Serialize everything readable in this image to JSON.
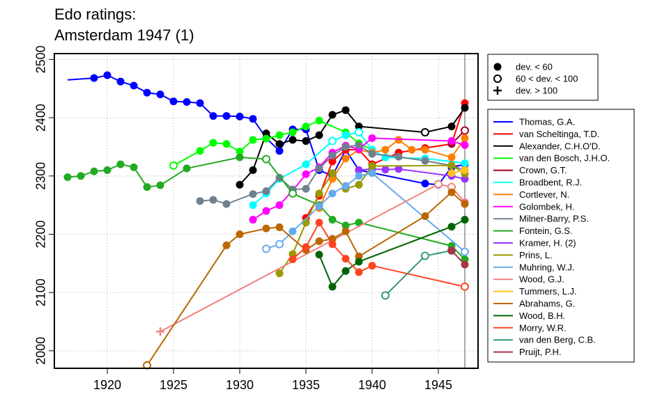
{
  "chart_data": {
    "type": "line",
    "title": [
      "Edo ratings:",
      "Amsterdam 1947 (1)"
    ],
    "xlabel": "",
    "ylabel": "",
    "xlim": [
      1916,
      1948
    ],
    "ylim": [
      1970,
      2510
    ],
    "x_ticks": [
      1920,
      1925,
      1930,
      1935,
      1940,
      1945
    ],
    "y_ticks": [
      2000,
      2100,
      2200,
      2300,
      2400,
      2500
    ],
    "grid": true,
    "vertical_marker_x": 1947,
    "marker_legend": [
      {
        "symbol": "filled",
        "label": "dev. < 60"
      },
      {
        "symbol": "open",
        "label": "60 < dev. < 100"
      },
      {
        "symbol": "plus",
        "label": "dev. > 100"
      }
    ],
    "series": [
      {
        "name": "Thomas, G.A.",
        "color": "#0000ff",
        "points": [
          [
            1917,
            2465,
            "n"
          ],
          [
            1919,
            2468,
            "f"
          ],
          [
            1920,
            2473,
            "f"
          ],
          [
            1921,
            2462,
            "f"
          ],
          [
            1922,
            2455,
            "f"
          ],
          [
            1923,
            2443,
            "f"
          ],
          [
            1924,
            2440,
            "f"
          ],
          [
            1925,
            2428,
            "f"
          ],
          [
            1926,
            2427,
            "f"
          ],
          [
            1927,
            2425,
            "f"
          ],
          [
            1928,
            2403,
            "f"
          ],
          [
            1929,
            2403,
            "f"
          ],
          [
            1930,
            2402,
            "f"
          ],
          [
            1931,
            2398,
            "f"
          ],
          [
            1932,
            2365,
            "f"
          ],
          [
            1933,
            2343,
            "f"
          ],
          [
            1934,
            2380,
            "f"
          ],
          [
            1935,
            2380,
            "f"
          ],
          [
            1936,
            2310,
            "f"
          ],
          [
            1937,
            2300,
            "f"
          ],
          [
            1938,
            2345,
            "f"
          ],
          [
            1939,
            2310,
            "f"
          ],
          [
            1944,
            2287,
            "f"
          ],
          [
            1945,
            2285,
            "f"
          ],
          [
            1946,
            2315,
            "f"
          ],
          [
            1947,
            2320,
            "f"
          ]
        ]
      },
      {
        "name": "van Scheltinga, T.D.",
        "color": "#ff0000",
        "points": [
          [
            1935,
            2228,
            "f"
          ],
          [
            1936,
            2266,
            "f"
          ],
          [
            1937,
            2325,
            "f"
          ],
          [
            1938,
            2345,
            "f"
          ],
          [
            1939,
            2345,
            "f"
          ],
          [
            1940,
            2320,
            "f"
          ],
          [
            1942,
            2340,
            "f"
          ],
          [
            1944,
            2348,
            "f"
          ],
          [
            1946,
            2355,
            "f"
          ],
          [
            1947,
            2425,
            "f"
          ]
        ]
      },
      {
        "name": "Alexander, C.H.O'D.",
        "color": "#000000",
        "points": [
          [
            1930,
            2285,
            "f"
          ],
          [
            1931,
            2310,
            "f"
          ],
          [
            1932,
            2373,
            "f"
          ],
          [
            1933,
            2355,
            "f"
          ],
          [
            1934,
            2362,
            "f"
          ],
          [
            1935,
            2360,
            "f"
          ],
          [
            1936,
            2370,
            "f"
          ],
          [
            1937,
            2405,
            "f"
          ],
          [
            1938,
            2413,
            "f"
          ],
          [
            1939,
            2385,
            "f"
          ],
          [
            1944,
            2375,
            "o"
          ],
          [
            1946,
            2385,
            "f"
          ],
          [
            1947,
            2417,
            "f"
          ]
        ]
      },
      {
        "name": "van den Bosch, J.H.O.",
        "color": "#00ff00",
        "points": [
          [
            1925,
            2318,
            "o"
          ],
          [
            1927,
            2343,
            "f"
          ],
          [
            1928,
            2357,
            "f"
          ],
          [
            1929,
            2355,
            "f"
          ],
          [
            1930,
            2342,
            "f"
          ],
          [
            1931,
            2362,
            "f"
          ],
          [
            1932,
            2364,
            "f"
          ],
          [
            1933,
            2370,
            "f"
          ],
          [
            1934,
            2375,
            "f"
          ],
          [
            1935,
            2385,
            "f"
          ],
          [
            1936,
            2395,
            "f"
          ],
          [
            1938,
            2375,
            "f"
          ],
          [
            1939,
            2356,
            "f"
          ],
          [
            1940,
            2345,
            "f"
          ]
        ]
      },
      {
        "name": "Crown, G.T.",
        "color": "#a00020",
        "points": [
          [
            1946,
            2355,
            "f"
          ],
          [
            1947,
            2378,
            "o"
          ]
        ]
      },
      {
        "name": "Broadbent, R.J.",
        "color": "#00ffff",
        "points": [
          [
            1931,
            2250,
            "f"
          ],
          [
            1932,
            2270,
            "f"
          ],
          [
            1933,
            2295,
            "f"
          ],
          [
            1935,
            2320,
            "f"
          ],
          [
            1937,
            2360,
            "o"
          ],
          [
            1938,
            2370,
            "f"
          ],
          [
            1939,
            2375,
            "o"
          ],
          [
            1940,
            2345,
            "f"
          ],
          [
            1941,
            2332,
            "f"
          ],
          [
            1944,
            2330,
            "f"
          ],
          [
            1947,
            2322,
            "f"
          ]
        ]
      },
      {
        "name": "Cortlever, N.",
        "color": "#ff8000",
        "points": [
          [
            1936,
            2245,
            "f"
          ],
          [
            1937,
            2295,
            "f"
          ],
          [
            1938,
            2330,
            "f"
          ],
          [
            1939,
            2345,
            "f"
          ],
          [
            1940,
            2340,
            "f"
          ],
          [
            1941,
            2345,
            "f"
          ],
          [
            1942,
            2362,
            "f"
          ],
          [
            1943,
            2345,
            "f"
          ],
          [
            1944,
            2345,
            "f"
          ],
          [
            1946,
            2332,
            "f"
          ],
          [
            1947,
            2365,
            "f"
          ]
        ]
      },
      {
        "name": "Golombek, H.",
        "color": "#ff00ff",
        "points": [
          [
            1931,
            2225,
            "f"
          ],
          [
            1932,
            2240,
            "f"
          ],
          [
            1933,
            2250,
            "f"
          ],
          [
            1934,
            2275,
            "f"
          ],
          [
            1935,
            2303,
            "f"
          ],
          [
            1936,
            2315,
            "f"
          ],
          [
            1937,
            2340,
            "f"
          ],
          [
            1938,
            2352,
            "f"
          ],
          [
            1939,
            2346,
            "f"
          ],
          [
            1940,
            2365,
            "f"
          ],
          [
            1946,
            2360,
            "f"
          ],
          [
            1947,
            2353,
            "f"
          ]
        ]
      },
      {
        "name": "Milner-Barry, P.S.",
        "color": "#708090",
        "points": [
          [
            1927,
            2257,
            "f"
          ],
          [
            1928,
            2259,
            "f"
          ],
          [
            1929,
            2252,
            "f"
          ],
          [
            1931,
            2269,
            "f"
          ],
          [
            1932,
            2274,
            "f"
          ],
          [
            1933,
            2297,
            "f"
          ],
          [
            1934,
            2277,
            "f"
          ],
          [
            1935,
            2278,
            "f"
          ],
          [
            1936,
            2313,
            "f"
          ],
          [
            1937,
            2335,
            "f"
          ],
          [
            1938,
            2350,
            "f"
          ],
          [
            1939,
            2353,
            "f"
          ],
          [
            1940,
            2338,
            "f"
          ],
          [
            1942,
            2333,
            "f"
          ],
          [
            1944,
            2326,
            "f"
          ],
          [
            1946,
            2318,
            "f"
          ],
          [
            1947,
            2310,
            "f"
          ]
        ]
      },
      {
        "name": "Fontein, G.S.",
        "color": "#22aa22",
        "points": [
          [
            1917,
            2298,
            "f"
          ],
          [
            1918,
            2300,
            "f"
          ],
          [
            1919,
            2308,
            "f"
          ],
          [
            1920,
            2310,
            "f"
          ],
          [
            1921,
            2320,
            "f"
          ],
          [
            1922,
            2315,
            "f"
          ],
          [
            1923,
            2281,
            "f"
          ],
          [
            1924,
            2284,
            "f"
          ],
          [
            1926,
            2313,
            "f"
          ],
          [
            1930,
            2332,
            "f"
          ],
          [
            1932,
            2329,
            "o"
          ],
          [
            1934,
            2270,
            "o"
          ],
          [
            1936,
            2250,
            "f"
          ],
          [
            1937,
            2225,
            "f"
          ],
          [
            1938,
            2215,
            "f"
          ],
          [
            1939,
            2220,
            "f"
          ],
          [
            1946,
            2180,
            "f"
          ],
          [
            1947,
            2157,
            "f"
          ]
        ]
      },
      {
        "name": "Kramer, H. (2)",
        "color": "#9933ff",
        "points": [
          [
            1939,
            2310,
            "f"
          ],
          [
            1940,
            2312,
            "f"
          ],
          [
            1941,
            2311,
            "f"
          ],
          [
            1942,
            2312,
            "f"
          ],
          [
            1946,
            2300,
            "f"
          ],
          [
            1947,
            2295,
            "f"
          ]
        ]
      },
      {
        "name": "Prins, L.",
        "color": "#999900",
        "points": [
          [
            1933,
            2133,
            "f"
          ],
          [
            1934,
            2166,
            "f"
          ],
          [
            1935,
            2220,
            "f"
          ],
          [
            1936,
            2270,
            "f"
          ],
          [
            1937,
            2305,
            "f"
          ],
          [
            1938,
            2278,
            "f"
          ],
          [
            1939,
            2285,
            "f"
          ],
          [
            1940,
            2317,
            "f"
          ],
          [
            1946,
            2318,
            "f"
          ],
          [
            1947,
            2304,
            "f"
          ]
        ]
      },
      {
        "name": "Muhring, W.J.",
        "color": "#66aaee",
        "points": [
          [
            1932,
            2175,
            "o"
          ],
          [
            1933,
            2183,
            "o"
          ],
          [
            1934,
            2205,
            "f"
          ],
          [
            1936,
            2248,
            "f"
          ],
          [
            1937,
            2270,
            "f"
          ],
          [
            1938,
            2283,
            "f"
          ],
          [
            1939,
            2300,
            "f"
          ],
          [
            1940,
            2305,
            "f"
          ],
          [
            1947,
            2170,
            "o"
          ]
        ]
      },
      {
        "name": "Wood, G.J.",
        "color": "#f08080",
        "points": [
          [
            1924,
            2033,
            "p"
          ],
          [
            1945,
            2286,
            "o"
          ],
          [
            1946,
            2281,
            "o"
          ],
          [
            1947,
            2255,
            "f"
          ]
        ]
      },
      {
        "name": "Tummers, L.J.",
        "color": "#ffc020",
        "points": [
          [
            1946,
            2305,
            "f"
          ],
          [
            1947,
            2310,
            "f"
          ]
        ]
      },
      {
        "name": "Abrahams, G.",
        "color": "#bb6600",
        "points": [
          [
            1923,
            1975,
            "o"
          ],
          [
            1929,
            2181,
            "f"
          ],
          [
            1930,
            2200,
            "f"
          ],
          [
            1932,
            2210,
            "f"
          ],
          [
            1933,
            2212,
            "f"
          ],
          [
            1935,
            2173,
            "f"
          ],
          [
            1936,
            2188,
            "f"
          ],
          [
            1937,
            2192,
            "f"
          ],
          [
            1938,
            2205,
            "f"
          ],
          [
            1939,
            2162,
            "f"
          ],
          [
            1944,
            2231,
            "f"
          ],
          [
            1946,
            2272,
            "f"
          ],
          [
            1947,
            2252,
            "f"
          ]
        ]
      },
      {
        "name": "Wood, B.H.",
        "color": "#006400",
        "points": [
          [
            1936,
            2165,
            "f"
          ],
          [
            1937,
            2110,
            "f"
          ],
          [
            1938,
            2137,
            "f"
          ],
          [
            1939,
            2153,
            "f"
          ],
          [
            1946,
            2213,
            "f"
          ],
          [
            1947,
            2225,
            "f"
          ]
        ]
      },
      {
        "name": "Morry, W.R.",
        "color": "#ff4422",
        "points": [
          [
            1934,
            2157,
            "f"
          ],
          [
            1935,
            2178,
            "f"
          ],
          [
            1936,
            2220,
            "f"
          ],
          [
            1937,
            2183,
            "f"
          ],
          [
            1938,
            2158,
            "f"
          ],
          [
            1939,
            2135,
            "f"
          ],
          [
            1940,
            2146,
            "f"
          ],
          [
            1947,
            2110,
            "o"
          ]
        ]
      },
      {
        "name": "van den Berg, C.B.",
        "color": "#339977",
        "points": [
          [
            1941,
            2095,
            "o"
          ],
          [
            1944,
            2163,
            "o"
          ],
          [
            1946,
            2172,
            "o"
          ]
        ]
      },
      {
        "name": "Pruijt, P.H.",
        "color": "#aa3344",
        "points": [
          [
            1946,
            2172,
            "f"
          ],
          [
            1947,
            2148,
            "f"
          ]
        ]
      }
    ]
  }
}
